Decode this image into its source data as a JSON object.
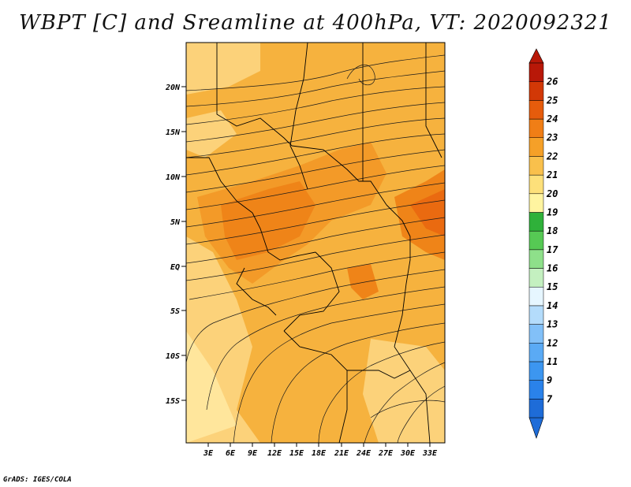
{
  "title": "WBPT [C] and Sreamline at 400hPa, VT: 2020092321",
  "credit": "GrADS: IGES/COLA",
  "lat_ticks": [
    "20N",
    "15N",
    "10N",
    "5N",
    "EQ",
    "5S",
    "10S",
    "15S"
  ],
  "lon_ticks": [
    "3E",
    "6E",
    "9E",
    "12E",
    "15E",
    "18E",
    "21E",
    "24E",
    "27E",
    "30E",
    "33E"
  ],
  "colorbar": {
    "labels": [
      "7",
      "9",
      "11",
      "12",
      "13",
      "14",
      "15",
      "16",
      "17",
      "18",
      "19",
      "20",
      "21",
      "22",
      "23",
      "24",
      "25",
      "26"
    ],
    "colors": [
      "#1e6cd8",
      "#2a82ea",
      "#3c96f0",
      "#5aaaf5",
      "#82c0f8",
      "#b4dcfb",
      "#e6f6ff",
      "#c4f0c0",
      "#8ee08a",
      "#56c954",
      "#2fb13a",
      "#fff4a0",
      "#fde07a",
      "#f9c04c",
      "#f5a028",
      "#f07e16",
      "#e65c0c",
      "#d23806",
      "#b81808"
    ]
  },
  "map_colors": {
    "base": "#f6b23e",
    "light": "#fcd27a",
    "pale": "#ffe69c",
    "warm": "#f39a28",
    "hot": "#ef8418",
    "hottest": "#ea6a10"
  }
}
